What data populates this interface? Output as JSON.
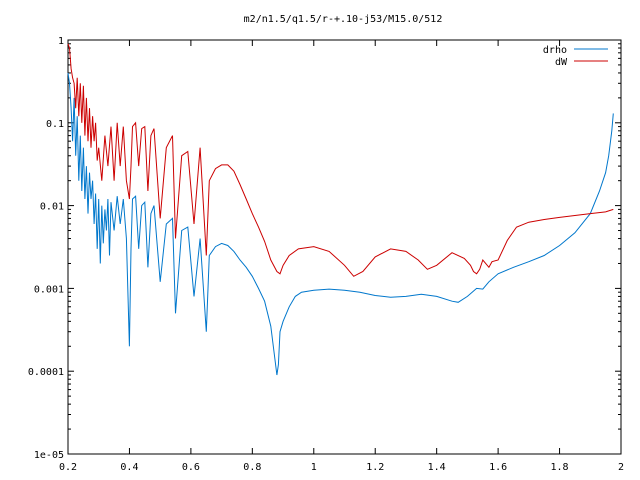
{
  "chart_data": {
    "type": "line",
    "title": "m2/n1.5/q1.5/r-+.10-j53/M15.0/512",
    "xlabel": "",
    "ylabel": "",
    "xlim": [
      0.2,
      2.0
    ],
    "ylim": [
      1e-05,
      1
    ],
    "y_scale": "log",
    "grid": false,
    "legend_position": "top-right",
    "x_ticks": [
      0.2,
      0.4,
      0.6,
      0.8,
      1.0,
      1.2,
      1.4,
      1.6,
      1.8,
      2.0
    ],
    "x_tick_labels": [
      "0.2",
      "0.4",
      "0.6",
      "0.8",
      "1",
      "1.2",
      "1.4",
      "1.6",
      "1.8",
      "2"
    ],
    "y_ticks": [
      1,
      0.1,
      0.01,
      0.001,
      0.0001,
      1e-05
    ],
    "y_tick_labels": [
      "1",
      "0.1",
      "0.01",
      "0.001",
      "0.0001",
      "1e-05"
    ],
    "series": [
      {
        "name": "drho",
        "color": "#0077cc",
        "x": [
          0.2,
          0.205,
          0.21,
          0.215,
          0.22,
          0.225,
          0.23,
          0.235,
          0.24,
          0.245,
          0.25,
          0.255,
          0.26,
          0.265,
          0.27,
          0.275,
          0.28,
          0.285,
          0.29,
          0.295,
          0.3,
          0.305,
          0.31,
          0.315,
          0.32,
          0.325,
          0.33,
          0.335,
          0.34,
          0.35,
          0.36,
          0.37,
          0.38,
          0.39,
          0.4,
          0.405,
          0.41,
          0.42,
          0.43,
          0.44,
          0.45,
          0.46,
          0.47,
          0.48,
          0.5,
          0.52,
          0.54,
          0.55,
          0.57,
          0.59,
          0.61,
          0.63,
          0.65,
          0.66,
          0.68,
          0.7,
          0.72,
          0.74,
          0.76,
          0.78,
          0.8,
          0.82,
          0.84,
          0.86,
          0.88,
          0.885,
          0.89,
          0.9,
          0.92,
          0.94,
          0.96,
          1.0,
          1.05,
          1.1,
          1.15,
          1.2,
          1.25,
          1.3,
          1.35,
          1.4,
          1.45,
          1.47,
          1.5,
          1.53,
          1.55,
          1.57,
          1.6,
          1.65,
          1.7,
          1.75,
          1.8,
          1.85,
          1.9,
          1.93,
          1.95,
          1.96,
          1.97,
          1.975
        ],
        "y": [
          0.4,
          0.3,
          0.15,
          0.06,
          0.2,
          0.04,
          0.12,
          0.02,
          0.07,
          0.015,
          0.05,
          0.012,
          0.03,
          0.008,
          0.025,
          0.012,
          0.02,
          0.006,
          0.014,
          0.003,
          0.012,
          0.002,
          0.01,
          0.0035,
          0.009,
          0.005,
          0.012,
          0.0025,
          0.011,
          0.005,
          0.013,
          0.006,
          0.012,
          0.004,
          0.0002,
          0.003,
          0.012,
          0.013,
          0.003,
          0.01,
          0.011,
          0.0018,
          0.008,
          0.01,
          0.0012,
          0.006,
          0.007,
          0.0005,
          0.005,
          0.0055,
          0.0008,
          0.004,
          0.0003,
          0.0025,
          0.0032,
          0.0035,
          0.0033,
          0.0028,
          0.0022,
          0.0018,
          0.0014,
          0.001,
          0.0007,
          0.00035,
          9e-05,
          0.00012,
          0.0003,
          0.0004,
          0.0006,
          0.0008,
          0.0009,
          0.00095,
          0.00098,
          0.00095,
          0.0009,
          0.00082,
          0.00078,
          0.0008,
          0.00085,
          0.0008,
          0.0007,
          0.00068,
          0.0008,
          0.001,
          0.00098,
          0.0012,
          0.0015,
          0.0018,
          0.0021,
          0.0025,
          0.0033,
          0.0047,
          0.008,
          0.015,
          0.025,
          0.04,
          0.08,
          0.13
        ]
      },
      {
        "name": "dW",
        "color": "#cc0000",
        "x": [
          0.2,
          0.205,
          0.21,
          0.215,
          0.22,
          0.225,
          0.23,
          0.235,
          0.24,
          0.245,
          0.25,
          0.255,
          0.26,
          0.265,
          0.27,
          0.275,
          0.28,
          0.285,
          0.29,
          0.295,
          0.3,
          0.31,
          0.32,
          0.33,
          0.34,
          0.35,
          0.36,
          0.37,
          0.38,
          0.39,
          0.4,
          0.405,
          0.41,
          0.42,
          0.43,
          0.44,
          0.45,
          0.46,
          0.47,
          0.48,
          0.5,
          0.52,
          0.54,
          0.55,
          0.57,
          0.59,
          0.61,
          0.63,
          0.65,
          0.66,
          0.68,
          0.7,
          0.72,
          0.74,
          0.76,
          0.78,
          0.8,
          0.82,
          0.84,
          0.86,
          0.88,
          0.89,
          0.9,
          0.92,
          0.95,
          1.0,
          1.05,
          1.1,
          1.13,
          1.16,
          1.2,
          1.25,
          1.3,
          1.34,
          1.37,
          1.4,
          1.45,
          1.49,
          1.51,
          1.52,
          1.53,
          1.54,
          1.55,
          1.57,
          1.58,
          1.6,
          1.63,
          1.66,
          1.7,
          1.75,
          1.8,
          1.85,
          1.9,
          1.95,
          1.975
        ],
        "y": [
          0.9,
          0.8,
          0.45,
          0.35,
          0.3,
          0.15,
          0.35,
          0.12,
          0.3,
          0.1,
          0.28,
          0.07,
          0.2,
          0.06,
          0.15,
          0.05,
          0.12,
          0.06,
          0.1,
          0.035,
          0.05,
          0.02,
          0.07,
          0.03,
          0.09,
          0.02,
          0.1,
          0.03,
          0.09,
          0.02,
          0.012,
          0.03,
          0.09,
          0.1,
          0.03,
          0.085,
          0.09,
          0.015,
          0.07,
          0.085,
          0.007,
          0.05,
          0.07,
          0.004,
          0.04,
          0.045,
          0.006,
          0.05,
          0.0025,
          0.02,
          0.028,
          0.031,
          0.031,
          0.026,
          0.018,
          0.012,
          0.008,
          0.0055,
          0.0037,
          0.0022,
          0.0016,
          0.0015,
          0.0019,
          0.0025,
          0.003,
          0.0032,
          0.0028,
          0.0019,
          0.0014,
          0.0016,
          0.0024,
          0.003,
          0.0028,
          0.0022,
          0.0017,
          0.0019,
          0.0027,
          0.0023,
          0.0019,
          0.0016,
          0.0015,
          0.0017,
          0.0022,
          0.0018,
          0.0021,
          0.0022,
          0.0038,
          0.0055,
          0.0063,
          0.0068,
          0.0072,
          0.0076,
          0.008,
          0.0084,
          0.009
        ]
      }
    ]
  }
}
